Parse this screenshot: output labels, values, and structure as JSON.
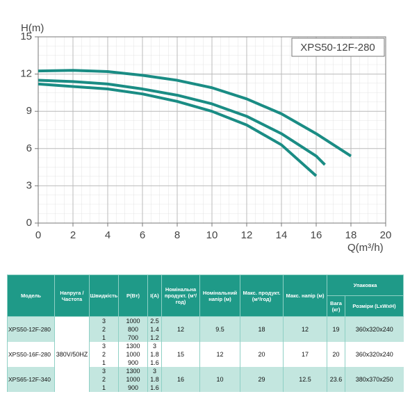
{
  "chart_data": {
    "type": "line",
    "x_label": "Q(m³/h)",
    "y_label": "H(m)",
    "annotation": "XPS50-12F-280",
    "xlim": [
      0,
      20
    ],
    "xticks": [
      0,
      2,
      4,
      6,
      8,
      10,
      12,
      14,
      16,
      18,
      20
    ],
    "ylim": [
      0,
      15
    ],
    "yticks": [
      0,
      3,
      6,
      9,
      12,
      15
    ],
    "grid": true,
    "series": [
      {
        "color": "#1a8c84",
        "x": [
          0,
          2,
          4,
          6,
          8,
          10,
          12,
          14,
          16,
          18
        ],
        "values": [
          12.25,
          12.3,
          12.2,
          11.9,
          11.5,
          10.9,
          10.0,
          8.8,
          7.2,
          5.4
        ]
      },
      {
        "color": "#1a8c84",
        "x": [
          0,
          2,
          4,
          6,
          8,
          10,
          12,
          14,
          16,
          16.5
        ],
        "values": [
          11.5,
          11.4,
          11.2,
          10.8,
          10.3,
          9.6,
          8.6,
          7.2,
          5.4,
          4.7
        ]
      },
      {
        "color": "#1a8c84",
        "x": [
          0,
          2,
          4,
          6,
          8,
          10,
          12,
          14,
          16
        ],
        "values": [
          11.2,
          11.0,
          10.8,
          10.4,
          9.8,
          9.0,
          7.9,
          6.3,
          3.8
        ]
      }
    ]
  },
  "table": {
    "headers": [
      "Модель",
      "Напруга /Частота",
      "Швидкість",
      "P(Вт)",
      "I(A)",
      "Номінальна продукт. (м³/год)",
      "Номінальний напір (м)",
      "Макс. продукт. (м³/год)",
      "Макс. напір (м)",
      "Упаковка"
    ],
    "package_headers": [
      "Вага (кг)",
      "Розміри (LxWxH)"
    ],
    "voltage": "380V/50HZ",
    "models": [
      {
        "model": "XPS50-12F-280",
        "speeds": [
          [
            "3",
            "1000",
            "2.5"
          ],
          [
            "2",
            "800",
            "1.4"
          ],
          [
            "1",
            "700",
            "1.2"
          ]
        ],
        "nominal_flow": "12",
        "nominal_head": "9.5",
        "max_flow": "18",
        "max_head": "12",
        "weight": "19",
        "size": "360x320x240"
      },
      {
        "model": "XPS50-16F-280",
        "speeds": [
          [
            "3",
            "1300",
            "3"
          ],
          [
            "2",
            "1000",
            "1.8"
          ],
          [
            "1",
            "900",
            "1.6"
          ]
        ],
        "nominal_flow": "15",
        "nominal_head": "12",
        "max_flow": "20",
        "max_head": "17",
        "weight": "20",
        "size": "360x320x240"
      },
      {
        "model": "XPS65-12F-340",
        "speeds": [
          [
            "3",
            "1300",
            "3"
          ],
          [
            "2",
            "1000",
            "1.8"
          ],
          [
            "1",
            "900",
            "1.6"
          ]
        ],
        "nominal_flow": "16",
        "nominal_head": "10",
        "max_flow": "29",
        "max_head": "12.5",
        "weight": "23.6",
        "size": "380x370x250"
      }
    ]
  }
}
